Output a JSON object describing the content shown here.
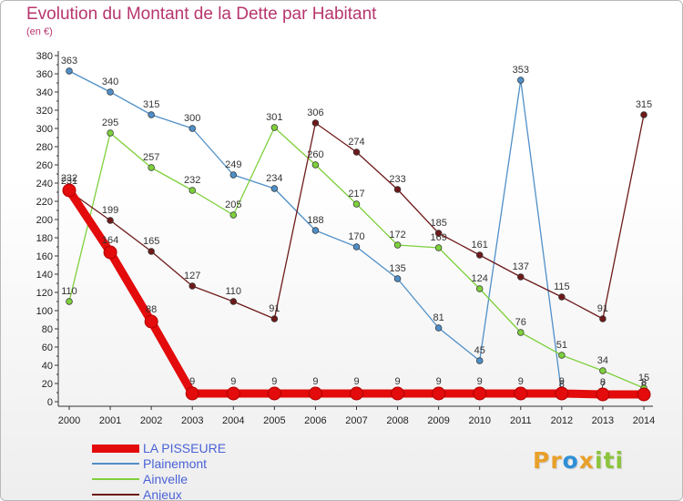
{
  "title": "Evolution du Montant de la Dette par Habitant",
  "unit": "(en €)",
  "brand": {
    "text": "Proxiti",
    "letters": [
      {
        "ch": "P",
        "color": "#e8a02a"
      },
      {
        "ch": "r",
        "color": "#e8a02a"
      },
      {
        "ch": "o",
        "color": "#2f8fd6"
      },
      {
        "ch": "x",
        "color": "#e8a02a"
      },
      {
        "ch": "i",
        "color": "#8cc43c"
      },
      {
        "ch": "t",
        "color": "#8cc43c"
      },
      {
        "ch": "i",
        "color": "#8cc43c"
      }
    ]
  },
  "chart_data": {
    "type": "line",
    "title": "Evolution du Montant de la Dette par Habitant",
    "subtitle": "(en €)",
    "x": [
      2000,
      2001,
      2002,
      2003,
      2004,
      2005,
      2006,
      2007,
      2008,
      2009,
      2010,
      2011,
      2012,
      2013,
      2014
    ],
    "ylim": [
      0,
      380
    ],
    "ytick_step": 20,
    "grid": false,
    "legend_position": "bottom-left",
    "series": [
      {
        "name": "LA PISSEURE",
        "color": "#e30b0b",
        "values": [
          232,
          164,
          88,
          9,
          9,
          9,
          9,
          9,
          9,
          9,
          9,
          9,
          9,
          8,
          8
        ]
      },
      {
        "name": "Plainemont",
        "color": "#4f8fc8",
        "values": [
          363,
          340,
          315,
          300,
          249,
          234,
          188,
          170,
          135,
          81,
          45,
          353,
          8,
          7,
          6
        ]
      },
      {
        "name": "Ainvelle",
        "color": "#7ed03c",
        "values": [
          110,
          295,
          257,
          232,
          205,
          301,
          260,
          217,
          172,
          169,
          124,
          76,
          51,
          34,
          15
        ]
      },
      {
        "name": "Anjeux",
        "color": "#6e1a1a",
        "values": [
          231,
          199,
          165,
          127,
          110,
          91,
          306,
          274,
          233,
          185,
          161,
          137,
          115,
          91,
          315
        ]
      }
    ]
  }
}
